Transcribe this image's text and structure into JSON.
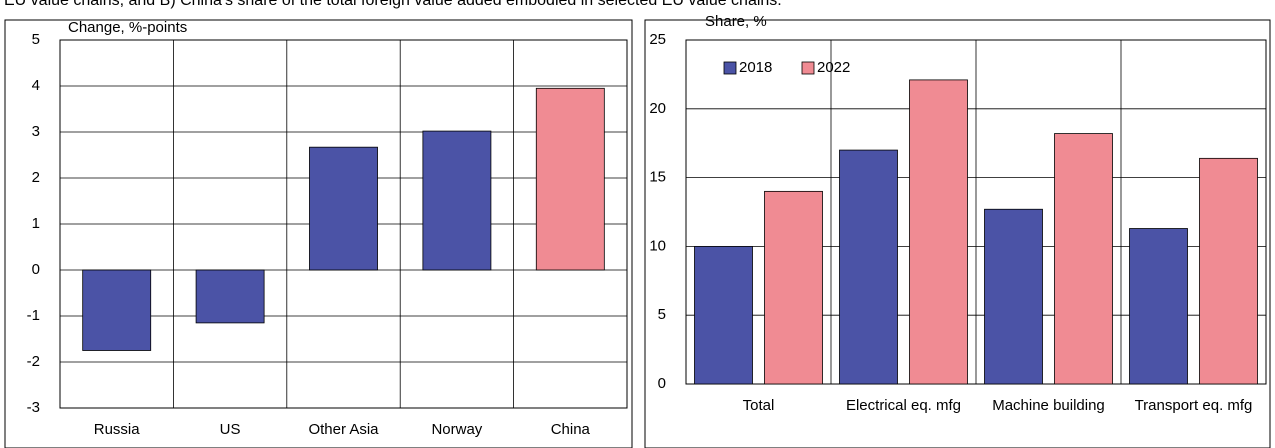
{
  "header": {
    "title": "EU value chains, and B) China's share of the total foreign value added embodied in selected EU value chains."
  },
  "chart_data": [
    {
      "type": "bar",
      "ylabel": "Change, %-points",
      "categories": [
        "Russia",
        "US",
        "Other Asia",
        "Norway",
        "China"
      ],
      "values": [
        -1.75,
        -1.15,
        2.67,
        3.02,
        3.95
      ],
      "colors": [
        "#4b53a6",
        "#4b53a6",
        "#4b53a6",
        "#4b53a6",
        "#f08b93"
      ],
      "ylim": [
        -3,
        5
      ],
      "yticks": [
        -3,
        -2,
        -1,
        0,
        1,
        2,
        3,
        4,
        5
      ],
      "grid": true
    },
    {
      "type": "grouped_bar",
      "ylabel": "Share, %",
      "categories": [
        "Total",
        "Electrical eq. mfg",
        "Machine building",
        "Transport eq. mfg"
      ],
      "series": [
        {
          "name": "2018",
          "color": "#4b53a6",
          "values": [
            10,
            17,
            12.7,
            11.3
          ]
        },
        {
          "name": "2022",
          "color": "#f08b93",
          "values": [
            14,
            22.1,
            18.2,
            16.4
          ]
        }
      ],
      "ylim": [
        0,
        25
      ],
      "yticks": [
        0,
        5,
        10,
        15,
        20,
        25
      ],
      "grid": true,
      "legend": "top-left"
    }
  ]
}
